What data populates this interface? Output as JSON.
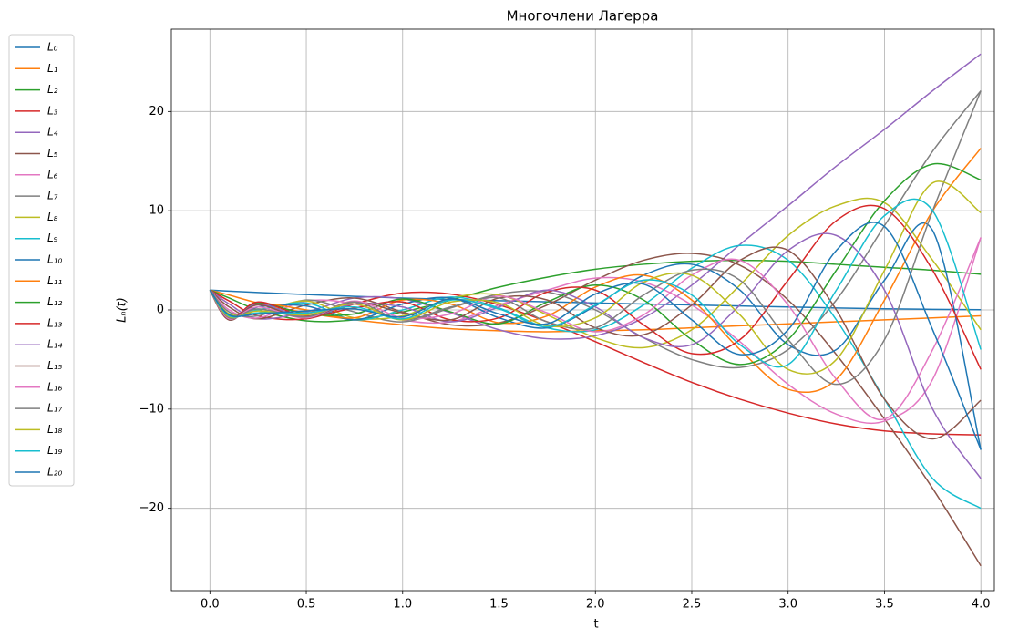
{
  "chart_data": {
    "type": "line",
    "title": "Многочлени Лаґерра",
    "x_label": "t",
    "y_label": "Lₙ(t)",
    "x": [
      0,
      0.1,
      0.25,
      0.5,
      0.75,
      1,
      1.25,
      1.5,
      1.75,
      2,
      2.25,
      2.5,
      2.75,
      3,
      3.25,
      3.5,
      3.75,
      4
    ],
    "xlim": [
      -0.2,
      4.07
    ],
    "ylim": [
      -28.3,
      28.3
    ],
    "xticks": [
      {
        "value": 0,
        "label": "0.0"
      },
      {
        "value": 0.5,
        "label": "0.5"
      },
      {
        "value": 1,
        "label": "1.0"
      },
      {
        "value": 1.5,
        "label": "1.5"
      },
      {
        "value": 2,
        "label": "2.0"
      },
      {
        "value": 2.5,
        "label": "2.5"
      },
      {
        "value": 3,
        "label": "3.0"
      },
      {
        "value": 3.5,
        "label": "3.5"
      },
      {
        "value": 4,
        "label": "4.0"
      }
    ],
    "yticks": [
      {
        "value": -20,
        "label": "−20"
      },
      {
        "value": -10,
        "label": "−10"
      },
      0,
      10,
      20
    ],
    "grid": true,
    "legend": "outside-left",
    "series": [
      {
        "name": "L₀",
        "color": "#1f77b4",
        "values": [
          2,
          1.9,
          1.76,
          1.55,
          1.37,
          1.2,
          1.06,
          0.93,
          0.82,
          0.7,
          0.6,
          0.5,
          0.4,
          0.3,
          0.2,
          0.12,
          0.06,
          0.02
        ]
      },
      {
        "name": "L₁",
        "color": "#ff7f0e",
        "values": [
          2,
          1.5,
          0.7,
          -0.3,
          -1,
          -1.5,
          -1.9,
          -2.1,
          -2.2,
          -2.1,
          -2,
          -1.8,
          -1.6,
          -1.4,
          -1.2,
          -1,
          -0.8,
          -0.6
        ]
      },
      {
        "name": "L₂",
        "color": "#2ca02c",
        "values": [
          2,
          1.2,
          0,
          -1.1,
          -1,
          -0.2,
          1,
          2.3,
          3.3,
          4.1,
          4.6,
          4.9,
          5,
          4.9,
          4.6,
          4.3,
          4,
          3.6
        ]
      },
      {
        "name": "L₃",
        "color": "#d62728",
        "values": [
          2,
          0.9,
          -0.6,
          -0.9,
          0.6,
          1.7,
          1.6,
          0.5,
          -1.2,
          -3.2,
          -5.3,
          -7.3,
          -9,
          -10.4,
          -11.5,
          -12.2,
          -12.5,
          -12.6
        ]
      },
      {
        "name": "L₄",
        "color": "#9467bd",
        "values": [
          2,
          0.6,
          -0.9,
          -0.2,
          1.2,
          1.1,
          -0.3,
          -2,
          -2.9,
          -2.6,
          -0.8,
          2.5,
          6.6,
          10.5,
          14.5,
          18.2,
          22.1,
          25.8
        ]
      },
      {
        "name": "L₅",
        "color": "#8c564b",
        "values": [
          2,
          0.3,
          -0.9,
          0.5,
          1.2,
          -0.2,
          -1.5,
          -1.3,
          0.5,
          3,
          5,
          5.7,
          4.5,
          1,
          -4.5,
          -11,
          -18,
          -25.8
        ]
      },
      {
        "name": "L₆",
        "color": "#e377c2",
        "values": [
          2,
          0,
          -0.8,
          0.9,
          0.6,
          -1,
          -1.2,
          0.5,
          2,
          3.2,
          2.8,
          0.5,
          -3.2,
          -7.5,
          -10.5,
          -11.2,
          -7,
          7.3
        ]
      },
      {
        "name": "L₇",
        "color": "#7f7f7f",
        "values": [
          2,
          -0.2,
          -0.6,
          1,
          -0.2,
          -1.2,
          0.2,
          1.6,
          1.8,
          0,
          -2.8,
          -5,
          -5.8,
          -4,
          1,
          8.5,
          16,
          22.1
        ]
      },
      {
        "name": "L₈",
        "color": "#bcbd22",
        "values": [
          2,
          -0.4,
          -0.3,
          0.9,
          -0.8,
          -0.6,
          1.2,
          1.5,
          -0.5,
          -2.8,
          -3.8,
          -2,
          2.5,
          7.5,
          10.5,
          10.8,
          5,
          -2
        ]
      },
      {
        "name": "L₉",
        "color": "#17becf",
        "values": [
          2,
          -0.6,
          0,
          0.7,
          -1,
          0,
          1.3,
          0.2,
          -1.8,
          -2,
          0.5,
          4.2,
          6.5,
          5,
          -1,
          -9,
          -17,
          -20
        ]
      },
      {
        "name": "L₁₀",
        "color": "#1f77b4",
        "values": [
          2,
          -0.8,
          0.3,
          0.4,
          -1,
          0.6,
          1.2,
          -0.8,
          -1.8,
          0.4,
          3.5,
          4.6,
          2,
          -3.5,
          -4,
          3,
          8,
          -14.1
        ]
      },
      {
        "name": "L₁₁",
        "color": "#ff7f0e",
        "values": [
          2,
          -0.9,
          0.6,
          0,
          -0.8,
          1,
          0.6,
          -1.3,
          -0.6,
          2.3,
          3.5,
          1,
          -4,
          -8,
          -7,
          1,
          10,
          16.3
        ]
      },
      {
        "name": "L₁₂",
        "color": "#2ca02c",
        "values": [
          2,
          -1,
          0.7,
          -0.4,
          -0.4,
          1.1,
          -0.2,
          -1.4,
          0.8,
          2.5,
          1,
          -3,
          -5.5,
          -3,
          4,
          11,
          14.7,
          13.1
        ]
      },
      {
        "name": "L₁₃",
        "color": "#d62728",
        "values": [
          2,
          -1,
          0.8,
          -0.6,
          0.2,
          0.8,
          -1,
          -0.8,
          1.8,
          2,
          -1.5,
          -4.4,
          -3,
          3,
          9,
          10.2,
          4,
          -6
        ]
      },
      {
        "name": "L₁₄",
        "color": "#9467bd",
        "values": [
          2,
          -1,
          0.6,
          -0.7,
          0.6,
          0.3,
          -1.2,
          0.3,
          2,
          0.3,
          -2.8,
          -3.5,
          0.5,
          6,
          7.5,
          2,
          -10,
          -17
        ]
      },
      {
        "name": "L₁₅",
        "color": "#8c564b",
        "values": [
          2,
          -1,
          0.5,
          -0.8,
          0.8,
          -0.3,
          -1,
          1.2,
          1,
          -1.8,
          -2.5,
          0.5,
          5,
          6,
          0,
          -9,
          -13,
          -9.1
        ]
      },
      {
        "name": "L₁₆",
        "color": "#e377c2",
        "values": [
          2,
          -0.9,
          0.3,
          -0.8,
          0.9,
          -0.8,
          -0.4,
          1.4,
          -0.3,
          -2.2,
          -0.5,
          3.5,
          5,
          0.5,
          -7,
          -11,
          -4,
          7.3
        ]
      },
      {
        "name": "L₁₇",
        "color": "#7f7f7f",
        "values": [
          2,
          -0.8,
          0.1,
          -0.7,
          0.8,
          -1,
          0.3,
          1.2,
          -1.2,
          -1.8,
          1.5,
          4,
          3,
          -3,
          -7.5,
          -3,
          10,
          22.1
        ]
      },
      {
        "name": "L₁₈",
        "color": "#bcbd22",
        "values": [
          2,
          -0.7,
          -0.1,
          -0.5,
          0.6,
          -1,
          0.8,
          0.7,
          -1.6,
          -0.8,
          2.8,
          3.5,
          -0.5,
          -6,
          -5,
          4,
          12.8,
          9.8
        ]
      },
      {
        "name": "L₁₉",
        "color": "#17becf",
        "values": [
          2,
          -0.6,
          -0.3,
          -0.3,
          0.3,
          -0.9,
          1,
          0.1,
          -1.7,
          0.5,
          3,
          1.5,
          -3.5,
          -5.5,
          2,
          9.5,
          10,
          -4
        ]
      },
      {
        "name": "L₂₀",
        "color": "#1f77b4",
        "values": [
          2,
          -0.5,
          -0.4,
          -0.1,
          0.1,
          -0.7,
          1.1,
          -0.4,
          -1.4,
          1.6,
          2.6,
          -1,
          -4.5,
          -2,
          6,
          8.4,
          -2,
          -14.1
        ]
      }
    ]
  }
}
